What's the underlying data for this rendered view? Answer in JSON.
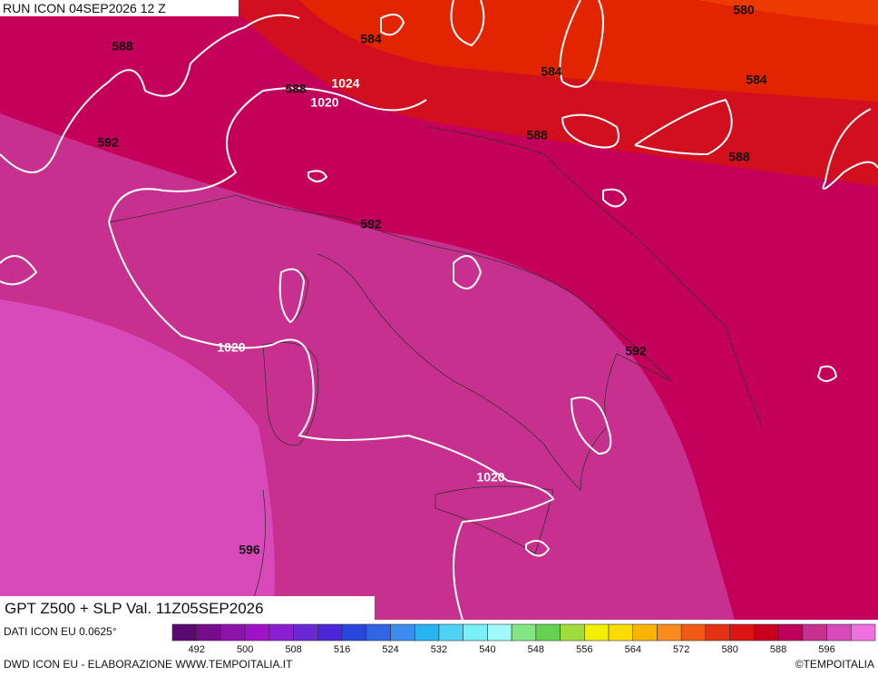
{
  "header": {
    "run": "RUN ICON 04SEP2026 12 Z"
  },
  "map": {
    "contour_labels": [
      "588",
      "592",
      "588",
      "584",
      "584",
      "580",
      "584",
      "588",
      "588",
      "592",
      "592",
      "596"
    ],
    "isobar_labels": [
      "1024",
      "1020",
      "1020",
      "1020"
    ]
  },
  "colorbar": {
    "colors": [
      "#5a0a6e",
      "#780a8c",
      "#8c14aa",
      "#a012c8",
      "#8c1ed2",
      "#6a28d2",
      "#4a28d8",
      "#2846dc",
      "#3264e6",
      "#3c8cf0",
      "#28b4f0",
      "#50d2f5",
      "#78f0f5",
      "#a0fafa",
      "#82e682",
      "#64d250",
      "#a0dc3c",
      "#f0f000",
      "#fadc00",
      "#fab400",
      "#fa8c1e",
      "#f05a14",
      "#e63214",
      "#dc1414",
      "#c8001e",
      "#c0005a",
      "#c8308f",
      "#d84aba",
      "#f070e0"
    ],
    "labels": [
      "492",
      "500",
      "508",
      "516",
      "524",
      "532",
      "540",
      "548",
      "556",
      "564",
      "572",
      "580",
      "588",
      "596"
    ]
  },
  "footer": {
    "title": "GPT Z500 + SLP Val. 11Z05SEP2026",
    "source": "DATI ICON EU 0.0625°",
    "credits": "DWD ICON EU - ELABORAZIONE WWW.TEMPOITALIA.IT",
    "copyright": "©TEMPOITALIA"
  }
}
